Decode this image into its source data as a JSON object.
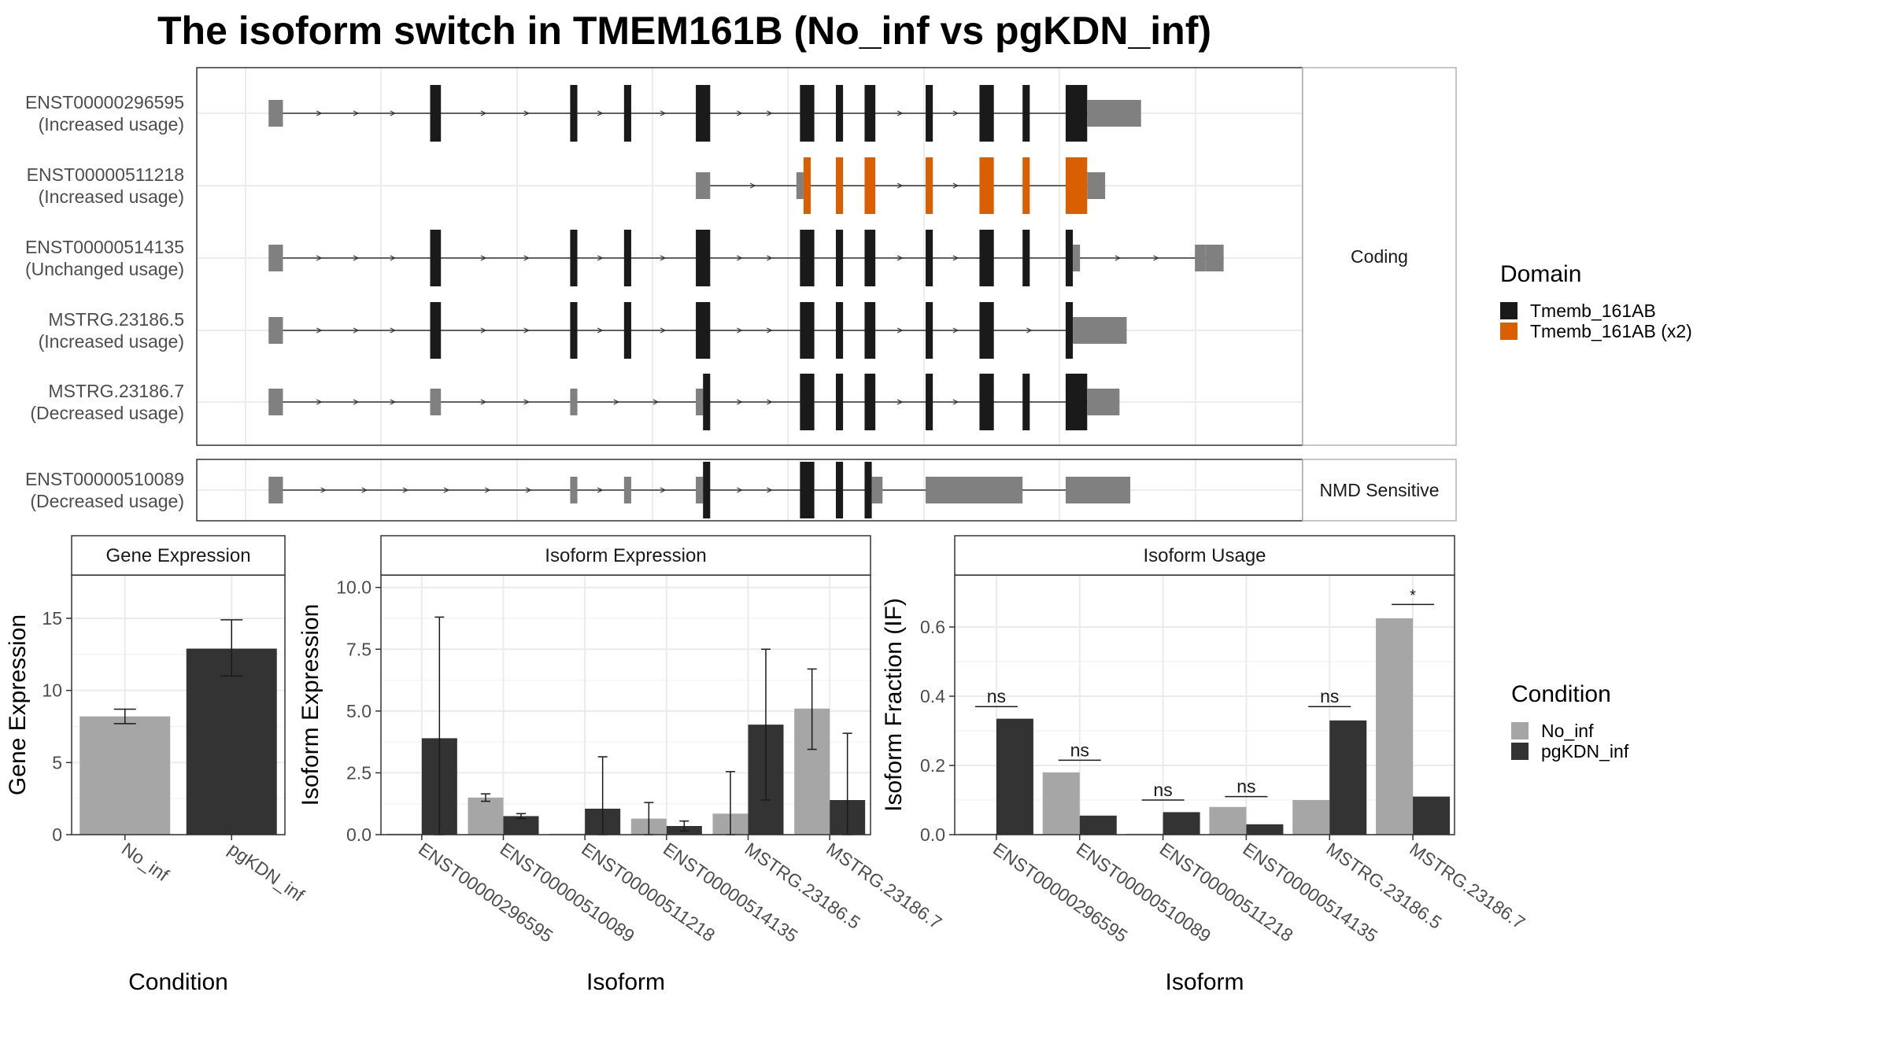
{
  "title": "The isoform switch in TMEM161B (No_inf vs pgKDN_inf)",
  "colors": {
    "exon_noncoding": "#808080",
    "domain_tmemb": "#1a1a1a",
    "domain_tmemb_x2": "#d95f02",
    "no_inf": "#a6a6a6",
    "pgkdn_inf": "#333333"
  },
  "legend_domain": {
    "title": "Domain",
    "items": [
      {
        "label": "Tmemb_161AB",
        "color": "#1a1a1a"
      },
      {
        "label": "Tmemb_161AB (x2)",
        "color": "#d95f02"
      }
    ]
  },
  "legend_condition": {
    "title": "Condition",
    "items": [
      {
        "label": "No_inf",
        "color": "#a6a6a6"
      },
      {
        "label": "pgKDN_inf",
        "color": "#333333"
      }
    ]
  },
  "structure_panels": [
    {
      "strip_label": "Coding",
      "isoforms": [
        {
          "id": "ENST00000296595",
          "usage": "(Increased usage)",
          "exons": [
            [
              2,
              6,
              "n"
            ],
            [
              47,
              50,
              "d"
            ],
            [
              86,
              88,
              "d"
            ],
            [
              101,
              103,
              "d"
            ],
            [
              121,
              125,
              "d"
            ],
            [
              150,
              154,
              "d"
            ],
            [
              160,
              162,
              "d"
            ],
            [
              168,
              171,
              "d"
            ],
            [
              185,
              187,
              "d"
            ],
            [
              200,
              204,
              "d"
            ],
            [
              212,
              214,
              "d"
            ],
            [
              224,
              230,
              "d"
            ],
            [
              230,
              245,
              "n"
            ]
          ]
        },
        {
          "id": "ENST00000511218",
          "usage": "(Increased usage)",
          "exons": [
            [
              121,
              125,
              "n"
            ],
            [
              149,
              151,
              "n"
            ],
            [
              151,
              153,
              "o"
            ],
            [
              160,
              162,
              "o"
            ],
            [
              168,
              171,
              "o"
            ],
            [
              185,
              187,
              "o"
            ],
            [
              200,
              204,
              "o"
            ],
            [
              212,
              214,
              "o"
            ],
            [
              224,
              230,
              "o"
            ],
            [
              230,
              235,
              "n"
            ]
          ]
        },
        {
          "id": "ENST00000514135",
          "usage": "(Unchanged usage)",
          "exons": [
            [
              2,
              6,
              "n"
            ],
            [
              47,
              50,
              "d"
            ],
            [
              86,
              88,
              "d"
            ],
            [
              101,
              103,
              "d"
            ],
            [
              121,
              125,
              "d"
            ],
            [
              150,
              154,
              "d"
            ],
            [
              160,
              162,
              "d"
            ],
            [
              168,
              171,
              "d"
            ],
            [
              185,
              187,
              "d"
            ],
            [
              200,
              204,
              "d"
            ],
            [
              212,
              214,
              "d"
            ],
            [
              224,
              226,
              "d"
            ],
            [
              226,
              228,
              "n"
            ],
            [
              260,
              263,
              "n"
            ],
            [
              263,
              268,
              "n"
            ]
          ]
        },
        {
          "id": "MSTRG.23186.5",
          "usage": "(Increased usage)",
          "exons": [
            [
              2,
              6,
              "n"
            ],
            [
              47,
              50,
              "d"
            ],
            [
              86,
              88,
              "d"
            ],
            [
              101,
              103,
              "d"
            ],
            [
              121,
              125,
              "d"
            ],
            [
              150,
              154,
              "d"
            ],
            [
              160,
              162,
              "d"
            ],
            [
              168,
              171,
              "d"
            ],
            [
              185,
              187,
              "d"
            ],
            [
              200,
              204,
              "d"
            ],
            [
              224,
              226,
              "d"
            ],
            [
              226,
              241,
              "n"
            ]
          ]
        },
        {
          "id": "MSTRG.23186.7",
          "usage": "(Decreased usage)",
          "exons": [
            [
              2,
              6,
              "n"
            ],
            [
              47,
              50,
              "n"
            ],
            [
              86,
              88,
              "n"
            ],
            [
              121,
              123,
              "n"
            ],
            [
              123,
              125,
              "d"
            ],
            [
              150,
              154,
              "d"
            ],
            [
              160,
              162,
              "d"
            ],
            [
              168,
              171,
              "d"
            ],
            [
              185,
              187,
              "d"
            ],
            [
              200,
              204,
              "d"
            ],
            [
              212,
              214,
              "d"
            ],
            [
              224,
              230,
              "d"
            ],
            [
              230,
              239,
              "n"
            ]
          ]
        }
      ]
    },
    {
      "strip_label": "NMD Sensitive",
      "isoforms": [
        {
          "id": "ENST00000510089",
          "usage": "(Decreased usage)",
          "exons": [
            [
              2,
              6,
              "n"
            ],
            [
              86,
              88,
              "n"
            ],
            [
              101,
              103,
              "n"
            ],
            [
              121,
              123,
              "n"
            ],
            [
              123,
              125,
              "d"
            ],
            [
              150,
              154,
              "d"
            ],
            [
              160,
              162,
              "d"
            ],
            [
              168,
              170,
              "d"
            ],
            [
              170,
              173,
              "n"
            ],
            [
              185,
              212,
              "n"
            ],
            [
              224,
              242,
              "n"
            ]
          ]
        }
      ]
    }
  ],
  "chart_data": [
    {
      "type": "bar",
      "title": "Gene Expression",
      "xlabel": "Condition",
      "ylabel": "Gene Expression",
      "ylim": [
        0,
        18
      ],
      "yticks": [
        0,
        5,
        10,
        15
      ],
      "categories": [
        "No_inf",
        "pgKDN_inf"
      ],
      "values": [
        8.2,
        12.9
      ],
      "errors": [
        [
          7.7,
          8.7
        ],
        [
          11.0,
          14.9
        ]
      ]
    },
    {
      "type": "bar",
      "title": "Isoform Expression",
      "xlabel": "Isoform",
      "ylabel": "Isoform Expression",
      "ylim": [
        0,
        10.5
      ],
      "yticks": [
        0.0,
        2.5,
        5.0,
        7.5,
        10.0
      ],
      "categories": [
        "ENST00000296595",
        "ENST00000510089",
        "ENST00000511218",
        "ENST00000514135",
        "MSTRG.23186.5",
        "MSTRG.23186.7"
      ],
      "series": [
        {
          "name": "No_inf",
          "values": [
            0.0,
            1.5,
            0.0,
            0.65,
            0.85,
            5.1
          ],
          "errors": [
            null,
            [
              1.35,
              1.65
            ],
            null,
            [
              0.0,
              1.3
            ],
            [
              0.0,
              2.55
            ],
            [
              3.45,
              6.7
            ]
          ]
        },
        {
          "name": "pgKDN_inf",
          "values": [
            3.9,
            0.75,
            1.05,
            0.35,
            4.45,
            1.4
          ],
          "errors": [
            [
              0.0,
              8.8
            ],
            [
              0.65,
              0.85
            ],
            [
              0.0,
              3.15
            ],
            [
              0.15,
              0.55
            ],
            [
              1.4,
              7.5
            ],
            [
              0.0,
              4.1
            ]
          ]
        }
      ]
    },
    {
      "type": "bar",
      "title": "Isoform Usage",
      "xlabel": "Isoform",
      "ylabel": "Isoform Fraction (IF)",
      "ylim": [
        0,
        0.75
      ],
      "yticks": [
        0.0,
        0.2,
        0.4,
        0.6
      ],
      "categories": [
        "ENST00000296595",
        "ENST00000510089",
        "ENST00000511218",
        "ENST00000514135",
        "MSTRG.23186.5",
        "MSTRG.23186.7"
      ],
      "series": [
        {
          "name": "No_inf",
          "values": [
            0.0,
            0.18,
            0.0,
            0.08,
            0.1,
            0.625
          ]
        },
        {
          "name": "pgKDN_inf",
          "values": [
            0.335,
            0.055,
            0.065,
            0.03,
            0.33,
            0.11
          ]
        }
      ],
      "significance": [
        {
          "label": "ns",
          "y": 0.37
        },
        {
          "label": "ns",
          "y": 0.215
        },
        {
          "label": "ns",
          "y": 0.1
        },
        {
          "label": "ns",
          "y": 0.11
        },
        {
          "label": "ns",
          "y": 0.37
        },
        {
          "label": "*",
          "y": 0.665
        }
      ]
    }
  ]
}
